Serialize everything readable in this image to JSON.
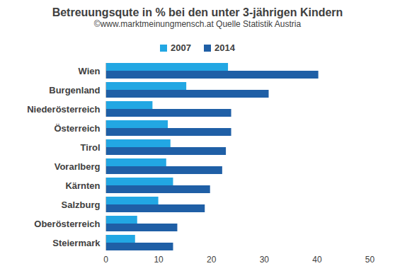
{
  "chart_data": {
    "type": "bar",
    "orientation": "horizontal",
    "title": "Betreuungsqute in % bei den unter 3-jährigen Kindern",
    "subtitle": "©www.marktmeinungmensch.at   Quelle Statistik Austria",
    "categories": [
      "Wien",
      "Burgenland",
      "Niederösterreich",
      "Österreich",
      "Tirol",
      "Vorarlberg",
      "Kärnten",
      "Salzburg",
      "Oberösterreich",
      "Steiermark"
    ],
    "series": [
      {
        "name": "2007",
        "color": "#22a7e3",
        "values": [
          23.2,
          15.3,
          8.9,
          11.8,
          12.3,
          11.5,
          12.8,
          10.0,
          6.0,
          5.6
        ]
      },
      {
        "name": "2014",
        "color": "#1f5fa6",
        "values": [
          40.3,
          30.9,
          23.8,
          23.8,
          22.8,
          22.1,
          19.8,
          18.8,
          13.6,
          12.8
        ]
      }
    ],
    "xlim": [
      0,
      50
    ],
    "xticks": [
      0,
      10,
      20,
      30,
      40,
      50
    ],
    "grid": false,
    "legend": "top"
  }
}
